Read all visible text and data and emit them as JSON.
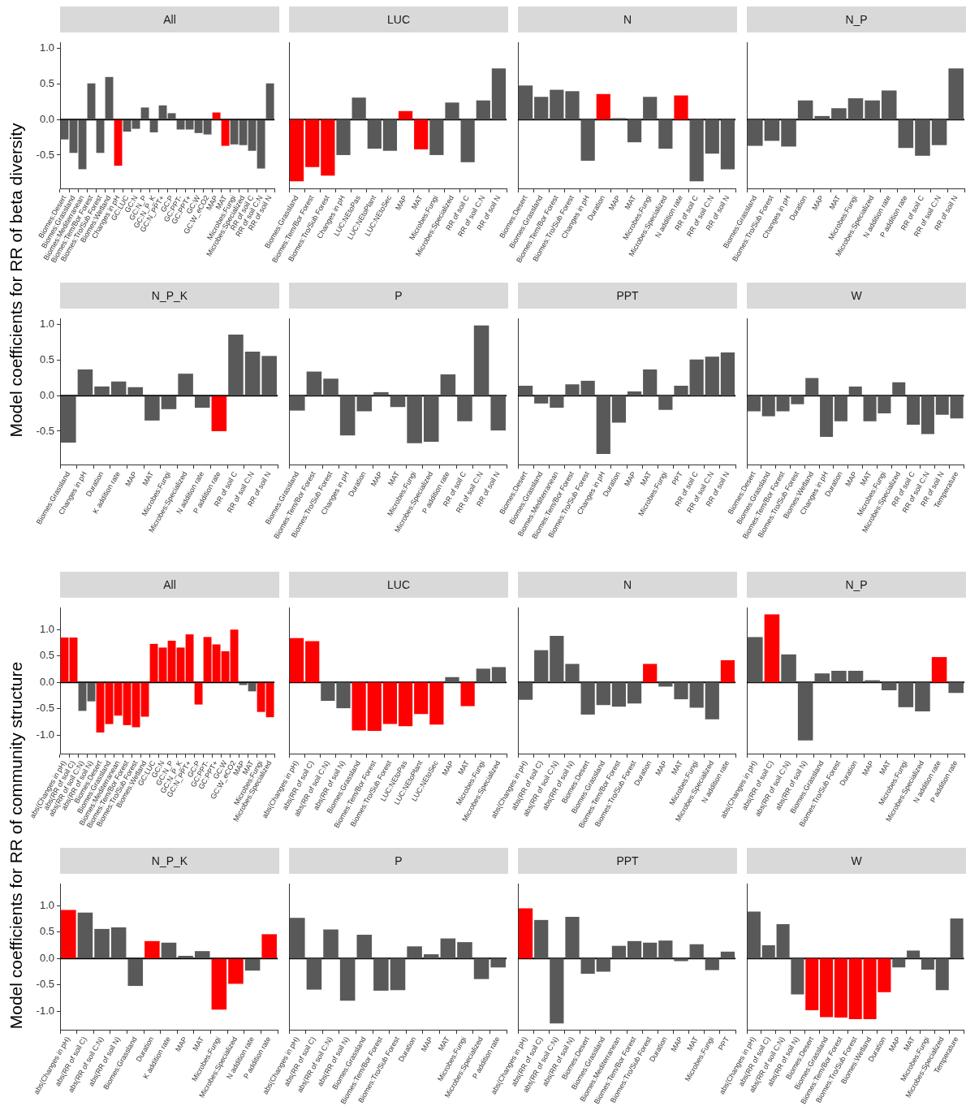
{
  "chart_data": [
    {
      "type": "bar",
      "title": "All",
      "ylabel": "Model coefficients for RR of beta diversity",
      "categories": [
        "Biomes:Desert",
        "Biomes:Grassland",
        "Biomes:Mediterranean",
        "Biomes:Tem/Bor Forest",
        "Biomes:Tro/Sub Forest",
        "Biomes:Wetland",
        "Changes in pH",
        "GC:LUC",
        "GC:N",
        "GC:N_P",
        "GC:N_P_K",
        "GC:N_PPT+",
        "GC:P",
        "GC:PPT-",
        "GC:PPT+",
        "GC:W",
        "GC:W_eCO2",
        "MAP",
        "MAT",
        "Microbes:Fungi",
        "Microbes:Specialized",
        "RR of soil C",
        "RR of soil C:N",
        "RR of soil N"
      ],
      "values": [
        -0.28,
        -0.47,
        -0.7,
        0.51,
        -0.47,
        0.6,
        -0.65,
        -0.17,
        -0.13,
        0.17,
        -0.18,
        0.2,
        0.09,
        -0.14,
        -0.14,
        -0.19,
        -0.21,
        0.1,
        -0.37,
        -0.35,
        -0.36,
        -0.44,
        -0.69,
        0.51
      ],
      "colors": [
        "#595959",
        "#595959",
        "#595959",
        "#595959",
        "#595959",
        "#595959",
        "#ff0000",
        "#595959",
        "#595959",
        "#595959",
        "#595959",
        "#595959",
        "#595959",
        "#595959",
        "#595959",
        "#595959",
        "#595959",
        "#ff0000",
        "#ff0000",
        "#595959",
        "#595959",
        "#595959",
        "#595959",
        "#595959"
      ],
      "ylim": [
        -0.97,
        1.09
      ],
      "yticks": [
        {
          "value": -0.5,
          "label": "-0.5"
        },
        {
          "value": 0,
          "label": "0.0"
        },
        {
          "value": 0.5,
          "label": "0.5"
        },
        {
          "value": 1,
          "label": "1.0"
        }
      ],
      "ref_lines": [
        {
          "axis": "y",
          "value": 0
        }
      ]
    },
    {
      "type": "bar",
      "title": "LUC",
      "categories": [
        "Biomes:Grassland",
        "Biomes:Tem/Bor Forest",
        "Biomes:Tro/Sub Forest",
        "Changes in pH",
        "LUC:NEtoPas",
        "LUC:NEtoPlant",
        "LUC:NEtoSec",
        "MAP",
        "MAT",
        "Microbes:Fungi",
        "Microbes:Specialized",
        "RR of soil C",
        "RR of soil C:N",
        "RR of soil N"
      ],
      "values": [
        -0.87,
        -0.67,
        -0.79,
        -0.5,
        0.31,
        -0.41,
        -0.44,
        0.12,
        -0.42,
        -0.5,
        0.24,
        -0.6,
        0.27,
        0.72
      ],
      "colors": [
        "#ff0000",
        "#ff0000",
        "#ff0000",
        "#595959",
        "#595959",
        "#595959",
        "#595959",
        "#ff0000",
        "#ff0000",
        "#595959",
        "#595959",
        "#595959",
        "#595959",
        "#595959"
      ],
      "ylim": [
        -0.97,
        1.09
      ],
      "tick_labels": "x",
      "ref_lines": [
        {
          "axis": "y",
          "value": 0
        }
      ]
    },
    {
      "type": "bar",
      "title": "N",
      "categories": [
        "Biomes:Desert",
        "Biomes:Grassland",
        "Biomes:Tem/Bor Forest",
        "Biomes:Tro/Sub Forest",
        "Changes in pH",
        "Duration",
        "MAP",
        "MAT",
        "Microbes:Fungi",
        "Microbes:Specialized",
        "N addition rate",
        "RR of soil C",
        "RR of soil C:N",
        "RR of soil N"
      ],
      "values": [
        0.48,
        0.32,
        0.42,
        0.4,
        -0.58,
        0.36,
        0.02,
        -0.32,
        0.32,
        -0.41,
        0.34,
        -0.87,
        -0.48,
        -0.7
      ],
      "colors": [
        "#595959",
        "#595959",
        "#595959",
        "#595959",
        "#595959",
        "#ff0000",
        "#595959",
        "#595959",
        "#595959",
        "#595959",
        "#ff0000",
        "#595959",
        "#595959",
        "#595959"
      ],
      "ylim": [
        -0.97,
        1.09
      ],
      "tick_labels": "x",
      "ref_lines": [
        {
          "axis": "y",
          "value": 0
        }
      ]
    },
    {
      "type": "bar",
      "title": "N_P",
      "categories": [
        "Biomes:Grassland",
        "Biomes:Tro/Sub Forest",
        "Changes in pH",
        "Duration",
        "MAP",
        "MAT",
        "Microbes:Fungi",
        "Microbes:Specialized",
        "N addition rate",
        "P addition rate",
        "RR of soil C",
        "RR of soil C:N",
        "RR of soil N"
      ],
      "values": [
        -0.37,
        -0.3,
        -0.38,
        0.27,
        0.05,
        0.16,
        0.3,
        0.27,
        0.41,
        -0.4,
        -0.51,
        -0.36,
        0.72
      ],
      "colors": [
        "#595959",
        "#595959",
        "#595959",
        "#595959",
        "#595959",
        "#595959",
        "#595959",
        "#595959",
        "#595959",
        "#595959",
        "#595959",
        "#595959",
        "#595959"
      ],
      "ylim": [
        -0.97,
        1.09
      ],
      "tick_labels": "x",
      "ref_lines": [
        {
          "axis": "y",
          "value": 0
        }
      ]
    },
    {
      "type": "bar",
      "title": "N_P_K",
      "categories": [
        "Biomes:Grassland",
        "Changes in pH",
        "Duration",
        "K addition rate",
        "MAP",
        "MAT",
        "Microbes:Fungi",
        "Microbes:Specialized",
        "N addition rate",
        "P addition rate",
        "RR of soil C",
        "RR of soil C:N",
        "RR of soil N"
      ],
      "values": [
        -0.66,
        0.37,
        0.13,
        0.2,
        0.12,
        -0.35,
        -0.19,
        0.31,
        -0.17,
        -0.5,
        0.86,
        0.62,
        0.56
      ],
      "colors": [
        "#595959",
        "#595959",
        "#595959",
        "#595959",
        "#595959",
        "#595959",
        "#595959",
        "#595959",
        "#595959",
        "#ff0000",
        "#595959",
        "#595959",
        "#595959"
      ],
      "ylim": [
        -0.97,
        1.09
      ],
      "yticks": [
        {
          "value": -0.5,
          "label": "-0.5"
        },
        {
          "value": 0,
          "label": "0.0"
        },
        {
          "value": 0.5,
          "label": "0.5"
        },
        {
          "value": 1,
          "label": "1.0"
        }
      ],
      "ref_lines": [
        {
          "axis": "y",
          "value": 0
        }
      ]
    },
    {
      "type": "bar",
      "title": "P",
      "categories": [
        "Biomes:Grassland",
        "Biomes:Tem/Bor Forest",
        "Biomes:Tro/Sub Forest",
        "Changes in pH",
        "Duration",
        "MAP",
        "MAT",
        "Microbes:Fungi",
        "Microbes:Specialized",
        "P addition rate",
        "RR of soil C",
        "RR of soil C:N",
        "RR of soil N"
      ],
      "values": [
        -0.21,
        0.34,
        0.24,
        -0.56,
        -0.22,
        0.05,
        -0.16,
        -0.67,
        -0.65,
        0.3,
        -0.36,
        0.99,
        -0.49
      ],
      "colors": [
        "#595959",
        "#595959",
        "#595959",
        "#595959",
        "#595959",
        "#595959",
        "#595959",
        "#595959",
        "#595959",
        "#595959",
        "#595959",
        "#595959",
        "#595959"
      ],
      "ylim": [
        -0.97,
        1.09
      ],
      "tick_labels": "x",
      "ref_lines": [
        {
          "axis": "y",
          "value": 0
        }
      ]
    },
    {
      "type": "bar",
      "title": "PPT",
      "categories": [
        "Biomes:Desert",
        "Biomes:Grassland",
        "Biomes:Mediterranean",
        "Biomes:Tem/Bor Forest",
        "Biomes:Tro/Sub Forest",
        "Changes in pH",
        "Duration",
        "MAP",
        "MAT",
        "Microbes:Fungi",
        "PPT",
        "RR of soil C",
        "RR of soil C:N",
        "RR of soil N"
      ],
      "values": [
        0.14,
        -0.11,
        -0.17,
        0.16,
        0.21,
        -0.82,
        -0.38,
        0.06,
        0.37,
        -0.2,
        0.14,
        0.51,
        0.55,
        0.61
      ],
      "colors": [
        "#595959",
        "#595959",
        "#595959",
        "#595959",
        "#595959",
        "#595959",
        "#595959",
        "#595959",
        "#595959",
        "#595959",
        "#595959",
        "#595959",
        "#595959",
        "#595959"
      ],
      "ylim": [
        -0.97,
        1.09
      ],
      "tick_labels": "x",
      "ref_lines": [
        {
          "axis": "y",
          "value": 0
        }
      ]
    },
    {
      "type": "bar",
      "title": "W",
      "categories": [
        "Biomes:Desert",
        "Biomes:Grassland",
        "Biomes:Tem/Bor Forest",
        "Biomes:Tro/Sub Forest",
        "Biomes:Wetland",
        "Changes in pH",
        "Duration",
        "MAP",
        "MAT",
        "Microbes:Fungi",
        "Microbes:Specialized",
        "RR of soil C",
        "RR of soil C:N",
        "RR of soil N",
        "Temperature"
      ],
      "values": [
        -0.22,
        -0.29,
        -0.22,
        -0.12,
        0.25,
        -0.58,
        -0.36,
        0.13,
        -0.36,
        -0.25,
        0.19,
        -0.41,
        -0.54,
        -0.27,
        -0.32
      ],
      "colors": [
        "#595959",
        "#595959",
        "#595959",
        "#595959",
        "#595959",
        "#595959",
        "#595959",
        "#595959",
        "#595959",
        "#595959",
        "#595959",
        "#595959",
        "#595959",
        "#595959",
        "#595959"
      ],
      "ylim": [
        -0.97,
        1.09
      ],
      "tick_labels": "x",
      "ref_lines": [
        {
          "axis": "y",
          "value": 0
        }
      ]
    },
    {
      "type": "bar",
      "title": "All",
      "ylabel": "Model coefficients for RR of community structure",
      "categories": [
        "abs(Changes in pH)",
        "abs(RR of soil C)",
        "abs(RR of soil C:N)",
        "abs(RR of soil N)",
        "Biomes:Desert",
        "Biomes:Grassland",
        "Biomes:Mediterranean",
        "Biomes:Tem/Bor Forest",
        "Biomes:Tro/Sub Forest",
        "Biomes:Wetland",
        "GC:LUC",
        "GC:N",
        "GC:N_P",
        "GC:N_P_K",
        "GC:N_PPT+",
        "GC:P",
        "GC:PPT-",
        "GC:PPT+",
        "GC:W",
        "GC:W_eCO2",
        "MAP",
        "MAT",
        "Microbes:Fungi",
        "Microbes:Specialized"
      ],
      "values": [
        0.85,
        0.85,
        -0.54,
        -0.36,
        -0.95,
        -0.79,
        -0.63,
        -0.81,
        -0.85,
        -0.65,
        0.73,
        0.66,
        0.79,
        0.66,
        0.91,
        -0.42,
        0.86,
        0.72,
        0.59,
        1.0,
        -0.05,
        -0.17,
        -0.56,
        -0.66
      ],
      "colors": [
        "#ff0000",
        "#ff0000",
        "#595959",
        "#595959",
        "#ff0000",
        "#ff0000",
        "#ff0000",
        "#ff0000",
        "#ff0000",
        "#ff0000",
        "#ff0000",
        "#ff0000",
        "#ff0000",
        "#ff0000",
        "#ff0000",
        "#ff0000",
        "#ff0000",
        "#ff0000",
        "#ff0000",
        "#ff0000",
        "#595959",
        "#595959",
        "#ff0000",
        "#ff0000"
      ],
      "ylim": [
        -1.35,
        1.42
      ],
      "yticks": [
        {
          "value": -1,
          "label": "-1.0"
        },
        {
          "value": -0.5,
          "label": "-0.5"
        },
        {
          "value": 0,
          "label": "0.0"
        },
        {
          "value": 0.5,
          "label": "0.5"
        },
        {
          "value": 1,
          "label": "1.0"
        }
      ],
      "ref_lines": [
        {
          "axis": "y",
          "value": 0
        }
      ]
    },
    {
      "type": "bar",
      "title": "LUC",
      "categories": [
        "abs(Changes in pH)",
        "abs(RR of soil C)",
        "abs(RR of soil C:N)",
        "abs(RR of soil N)",
        "Biomes:Grassland",
        "Biomes:Tem/Bor Forest",
        "Biomes:Tro/Sub Forest",
        "LUC:NEtoPas",
        "LUC:NEtoPlant",
        "LUC:NEtoSec",
        "MAP",
        "MAT",
        "Microbes:Fungi",
        "Microbes:Specialized"
      ],
      "values": [
        0.84,
        0.78,
        -0.35,
        -0.49,
        -0.91,
        -0.92,
        -0.79,
        -0.83,
        -0.6,
        -0.8,
        0.1,
        -0.45,
        0.26,
        0.29
      ],
      "colors": [
        "#ff0000",
        "#ff0000",
        "#595959",
        "#595959",
        "#ff0000",
        "#ff0000",
        "#ff0000",
        "#ff0000",
        "#ff0000",
        "#ff0000",
        "#595959",
        "#ff0000",
        "#595959",
        "#595959"
      ],
      "ylim": [
        -1.35,
        1.42
      ],
      "tick_labels": "x",
      "ref_lines": [
        {
          "axis": "y",
          "value": 0
        }
      ]
    },
    {
      "type": "bar",
      "title": "N",
      "categories": [
        "abs(Changes in pH)",
        "abs(RR of soil C)",
        "abs(RR of soil C:N)",
        "abs(RR of soil N)",
        "Biomes:Desert",
        "Biomes:Grassland",
        "Biomes:Tem/Bor Forest",
        "Biomes:Tro/Sub Forest",
        "Duration",
        "MAP",
        "MAT",
        "Microbes:Fungi",
        "Microbes:Specialized",
        "N addition rate"
      ],
      "values": [
        -0.33,
        0.61,
        0.88,
        0.35,
        -0.61,
        -0.43,
        -0.46,
        -0.4,
        0.35,
        -0.08,
        -0.32,
        -0.48,
        -0.7,
        0.42
      ],
      "colors": [
        "#595959",
        "#595959",
        "#595959",
        "#595959",
        "#595959",
        "#595959",
        "#595959",
        "#595959",
        "#ff0000",
        "#595959",
        "#595959",
        "#595959",
        "#595959",
        "#ff0000"
      ],
      "ylim": [
        -1.35,
        1.42
      ],
      "tick_labels": "x",
      "ref_lines": [
        {
          "axis": "y",
          "value": 0
        }
      ]
    },
    {
      "type": "bar",
      "title": "N_P",
      "categories": [
        "abs(Changes in pH)",
        "abs(RR of soil C)",
        "abs(RR of soil C:N)",
        "abs(RR of soil N)",
        "Biomes:Grassland",
        "Biomes:Tro/Sub Forest",
        "Duration",
        "MAP",
        "MAT",
        "Microbes:Fungi",
        "Microbes:Specialized",
        "N addition rate",
        "P addition rate"
      ],
      "values": [
        0.86,
        1.29,
        0.53,
        -1.1,
        0.17,
        0.22,
        0.22,
        0.04,
        -0.15,
        -0.47,
        -0.55,
        0.48,
        -0.2
      ],
      "colors": [
        "#595959",
        "#ff0000",
        "#595959",
        "#595959",
        "#595959",
        "#595959",
        "#595959",
        "#595959",
        "#595959",
        "#595959",
        "#595959",
        "#ff0000",
        "#595959"
      ],
      "ylim": [
        -1.35,
        1.42
      ],
      "tick_labels": "x",
      "ref_lines": [
        {
          "axis": "y",
          "value": 0
        }
      ]
    },
    {
      "type": "bar",
      "title": "N_P_K",
      "categories": [
        "abs(Changes in pH)",
        "abs(RR of soil C)",
        "abs(RR of soil C:N)",
        "abs(RR of soil N)",
        "Biomes:Grassland",
        "Duration",
        "K addition rate",
        "MAP",
        "MAT",
        "Microbes:Fungi",
        "Microbes:Specialized",
        "N addition rate",
        "P addition rate"
      ],
      "values": [
        0.92,
        0.87,
        0.56,
        0.59,
        -0.52,
        0.33,
        0.3,
        0.05,
        0.14,
        -0.97,
        -0.48,
        -0.23,
        0.46
      ],
      "colors": [
        "#ff0000",
        "#595959",
        "#595959",
        "#595959",
        "#595959",
        "#ff0000",
        "#595959",
        "#595959",
        "#595959",
        "#ff0000",
        "#ff0000",
        "#595959",
        "#ff0000"
      ],
      "ylim": [
        -1.35,
        1.42
      ],
      "yticks": [
        {
          "value": -1,
          "label": "-1.0"
        },
        {
          "value": -0.5,
          "label": "-0.5"
        },
        {
          "value": 0,
          "label": "0.0"
        },
        {
          "value": 0.5,
          "label": "0.5"
        },
        {
          "value": 1,
          "label": "1.0"
        }
      ],
      "ref_lines": [
        {
          "axis": "y",
          "value": 0
        }
      ]
    },
    {
      "type": "bar",
      "title": "P",
      "categories": [
        "abs(Changes in pH)",
        "abs(RR of soil C)",
        "abs(RR of soil C:N)",
        "abs(RR of soil N)",
        "Biomes:Grassland",
        "Biomes:Tem/Bor Forest",
        "Biomes:Tro/Sub Forest",
        "Duration",
        "MAP",
        "MAT",
        "Microbes:Fungi",
        "Microbes:Specialized",
        "P addition rate"
      ],
      "values": [
        0.77,
        -0.59,
        0.55,
        -0.8,
        0.45,
        -0.61,
        -0.6,
        0.23,
        0.08,
        0.38,
        0.31,
        -0.39,
        -0.17
      ],
      "colors": [
        "#595959",
        "#595959",
        "#595959",
        "#595959",
        "#595959",
        "#595959",
        "#595959",
        "#595959",
        "#595959",
        "#595959",
        "#595959",
        "#595959",
        "#595959"
      ],
      "ylim": [
        -1.35,
        1.42
      ],
      "tick_labels": "x",
      "ref_lines": [
        {
          "axis": "y",
          "value": 0
        }
      ]
    },
    {
      "type": "bar",
      "title": "PPT",
      "categories": [
        "abs(Changes in pH)",
        "abs(RR of soil C)",
        "abs(RR of soil C:N)",
        "abs(RR of soil N)",
        "Biomes:Desert",
        "Biomes:Grassland",
        "Biomes:Mediterranean",
        "Biomes:Tem/Bor Forest",
        "Biomes:Tro/Sub Forest",
        "Duration",
        "MAP",
        "MAT",
        "Microbes:Fungi",
        "PPT"
      ],
      "values": [
        0.95,
        0.73,
        -1.23,
        0.79,
        -0.29,
        -0.25,
        0.24,
        0.33,
        0.3,
        0.34,
        -0.05,
        0.27,
        -0.22,
        0.13
      ],
      "colors": [
        "#ff0000",
        "#595959",
        "#595959",
        "#595959",
        "#595959",
        "#595959",
        "#595959",
        "#595959",
        "#595959",
        "#595959",
        "#595959",
        "#595959",
        "#595959",
        "#595959"
      ],
      "ylim": [
        -1.35,
        1.42
      ],
      "tick_labels": "x",
      "ref_lines": [
        {
          "axis": "y",
          "value": 0
        }
      ]
    },
    {
      "type": "bar",
      "title": "W",
      "categories": [
        "abs(Changes in pH)",
        "abs(RR of soil C)",
        "abs(RR of soil C:N)",
        "abs(RR of soil N)",
        "Biomes:Desert",
        "Biomes:Grassland",
        "Biomes:Tem/Bor Forest",
        "Biomes:Tro/Sub Forest",
        "Biomes:Wetland",
        "Duration",
        "MAP",
        "MAT",
        "Microbes:Fungi",
        "Microbes:Specialized",
        "Temperature"
      ],
      "values": [
        0.89,
        0.25,
        0.65,
        -0.68,
        -0.98,
        -1.11,
        -1.12,
        -1.15,
        -1.15,
        -0.64,
        -0.17,
        0.15,
        -0.21,
        -0.6,
        0.76
      ],
      "colors": [
        "#595959",
        "#595959",
        "#595959",
        "#595959",
        "#ff0000",
        "#ff0000",
        "#ff0000",
        "#ff0000",
        "#ff0000",
        "#ff0000",
        "#595959",
        "#595959",
        "#595959",
        "#595959",
        "#595959"
      ],
      "ylim": [
        -1.35,
        1.42
      ],
      "tick_labels": "x",
      "ref_lines": [
        {
          "axis": "y",
          "value": 0
        }
      ]
    }
  ]
}
